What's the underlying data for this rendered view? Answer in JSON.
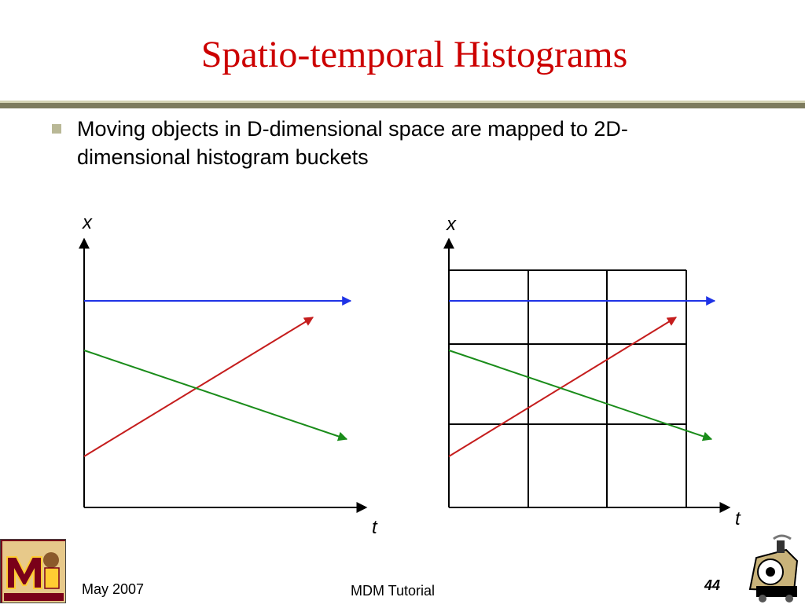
{
  "slide": {
    "title": "Spatio-temporal Histograms",
    "bullet": "Moving objects in D-dimensional space are mapped to 2D-dimensional histogram buckets"
  },
  "diagram": {
    "left_axes": {
      "y_label": "x",
      "x_label": "t"
    },
    "right_axes": {
      "y_label": "x",
      "x_label": "t",
      "grid": "3x3"
    },
    "colors": {
      "blue": "#1f33e6",
      "red": "#c51d1d",
      "green": "#1a8c1a",
      "axis": "#000000"
    }
  },
  "footer": {
    "date": "May 2007",
    "center": "MDM Tutorial",
    "page": "44"
  },
  "logos": {
    "left": "university-of-minnesota-logo",
    "right": "purdue-logo"
  }
}
